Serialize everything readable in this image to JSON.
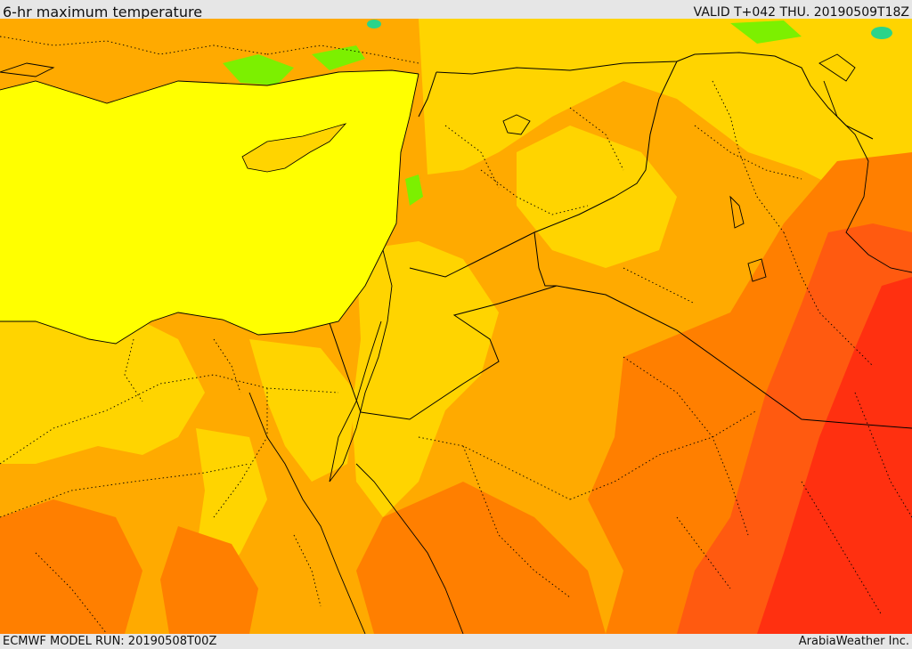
{
  "header": {
    "title": "6-hr maximum temperature",
    "valid": "VALID T+042 THU. 20190509T18Z"
  },
  "footer": {
    "model_run": "ECMWF MODEL RUN: 20190508T00Z",
    "credit": "ArabiaWeather Inc."
  },
  "map": {
    "colors": {
      "sea_yellow": "#ffff00",
      "light_orange": "#ffd400",
      "orange": "#ffaa00",
      "dark_orange": "#ff7f00",
      "red_orange": "#ff5a10",
      "red": "#ff3010",
      "green": "#7cf000",
      "bright_green": "#2ad48a",
      "pale_yellow": "#ffee33"
    },
    "layers": [
      "temperature-fill",
      "coastlines",
      "country-borders",
      "province-borders"
    ]
  }
}
